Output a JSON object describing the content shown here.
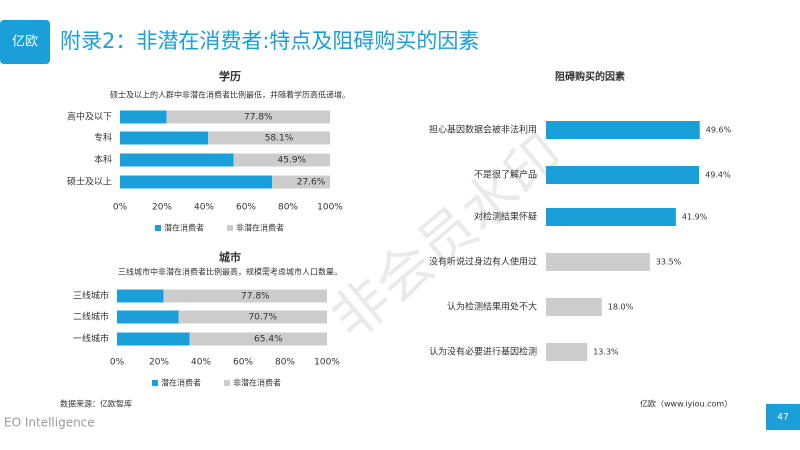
{
  "header": {
    "logo": "亿欧",
    "title": "附录2：非潜在消费者:特点及阻碍购买的因素"
  },
  "chart_data": [
    {
      "type": "stacked_barh",
      "title": "学历",
      "subtitle": "硕士及以上的人群中非潜在消费者比例最低，并随着学历高低递增。",
      "categories": [
        "高中及以下",
        "专科",
        "本科",
        "硕士及以上"
      ],
      "series": [
        {
          "name": "潜在消费者",
          "color": "#1a9fd8",
          "values": [
            22.2,
            41.9,
            54.1,
            72.4
          ]
        },
        {
          "name": "非潜在消费者",
          "color": "#cccccc",
          "values": [
            77.8,
            58.1,
            45.9,
            27.6
          ],
          "value_labels": [
            "77.8%",
            "58.1%",
            "45.9%",
            "27.6%"
          ]
        }
      ],
      "xlim": [
        0,
        100
      ],
      "xticks": [
        {
          "value": 0,
          "label": "0%"
        },
        {
          "value": 20,
          "label": "20%"
        },
        {
          "value": 40,
          "label": "40%"
        },
        {
          "value": 60,
          "label": "60%"
        },
        {
          "value": 80,
          "label": "80%"
        },
        {
          "value": 100,
          "label": "100%"
        }
      ]
    },
    {
      "type": "stacked_barh",
      "title": "城市",
      "subtitle": "三线城市中非潜在消费者比例最高，规模需考虑城市人口数量。",
      "categories": [
        "三线城市",
        "二线城市",
        "一线城市"
      ],
      "series": [
        {
          "name": "潜在消费者",
          "color": "#1a9fd8",
          "values": [
            22.2,
            29.3,
            34.6
          ]
        },
        {
          "name": "非潜在消费者",
          "color": "#cccccc",
          "values": [
            77.8,
            70.7,
            65.4
          ],
          "value_labels": [
            "77.8%",
            "70.7%",
            "65.4%"
          ]
        }
      ],
      "xlim": [
        0,
        100
      ],
      "xticks": [
        {
          "value": 0,
          "label": "0%"
        },
        {
          "value": 20,
          "label": "20%"
        },
        {
          "value": 40,
          "label": "40%"
        },
        {
          "value": 60,
          "label": "60%"
        },
        {
          "value": 80,
          "label": "80%"
        },
        {
          "value": 100,
          "label": "100%"
        }
      ]
    },
    {
      "type": "barh",
      "title": "阻碍购买的因素",
      "categories": [
        "担心基因数据会被非法利用",
        "不是很了解产品",
        "对检测结果怀疑",
        "没有听说过身边有人使用过",
        "认为检测结果用处不大",
        "认为没有必要进行基因检测"
      ],
      "values": [
        49.6,
        49.4,
        41.9,
        33.5,
        18.0,
        13.3
      ],
      "value_labels": [
        "49.6%",
        "49.4%",
        "41.9%",
        "33.5%",
        "18.0%",
        "13.3%"
      ],
      "colors": [
        "#1a9fd8",
        "#1a9fd8",
        "#1a9fd8",
        "#cccccc",
        "#cccccc",
        "#cccccc"
      ]
    }
  ],
  "watermark": "非会员水印",
  "footer": {
    "source": "数据来源：亿欧智库",
    "site": "亿欧（www.iyiou.com）",
    "brand": "EO Intelligence",
    "page": "47"
  }
}
